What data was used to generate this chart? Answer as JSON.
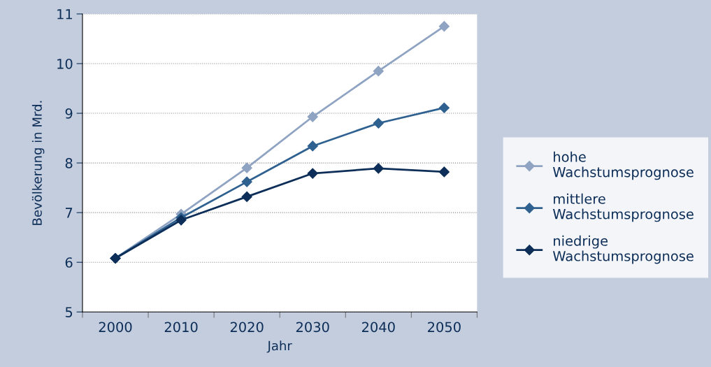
{
  "chart_data": {
    "type": "line",
    "xlabel": "Jahr",
    "ylabel": "Bevölkerung in Mrd.",
    "categories": [
      "2000",
      "2010",
      "2020",
      "2030",
      "2040",
      "2050"
    ],
    "series": [
      {
        "name": "hohe\nWachstumsprognose",
        "color": "#8fa3c2",
        "values": [
          6.08,
          6.97,
          7.9,
          8.93,
          9.85,
          10.75
        ]
      },
      {
        "name": "mittlere\nWachstumsprognose",
        "color": "#2f6190",
        "values": [
          6.08,
          6.9,
          7.62,
          8.34,
          8.8,
          9.11
        ]
      },
      {
        "name": "niedrige\nWachstumsprognose",
        "color": "#0d2e58",
        "values": [
          6.08,
          6.85,
          7.32,
          7.79,
          7.89,
          7.82
        ]
      }
    ],
    "ylim": [
      5,
      11
    ],
    "yticks": [
      5,
      6,
      7,
      8,
      9,
      10,
      11
    ],
    "grid": "y",
    "legend": "right",
    "marker": "diamond",
    "line_style": "solid"
  }
}
